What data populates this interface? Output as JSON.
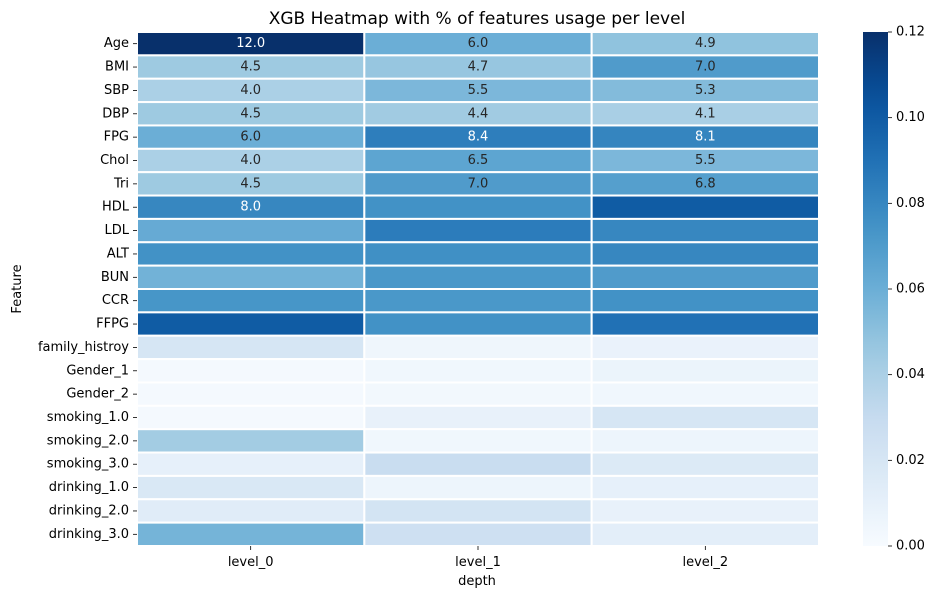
{
  "chart_data": {
    "type": "heatmap",
    "title": "XGB Heatmap with % of features usage per level",
    "xlabel": "depth",
    "ylabel": "Feature",
    "columns": [
      "level_0",
      "level_1",
      "level_2"
    ],
    "rows": [
      "Age",
      "BMI",
      "SBP",
      "DBP",
      "FPG",
      "Chol",
      "Tri",
      "HDL",
      "LDL",
      "ALT",
      "BUN",
      "CCR",
      "FFPG",
      "family_histroy",
      "Gender_1",
      "Gender_2",
      "smoking_1.0",
      "smoking_2.0",
      "smoking_3.0",
      "drinking_1.0",
      "drinking_2.0",
      "drinking_3.0"
    ],
    "values": [
      [
        0.12,
        0.06,
        0.049
      ],
      [
        0.045,
        0.047,
        0.07
      ],
      [
        0.04,
        0.055,
        0.053
      ],
      [
        0.045,
        0.044,
        0.041
      ],
      [
        0.06,
        0.084,
        0.081
      ],
      [
        0.04,
        0.065,
        0.055
      ],
      [
        0.045,
        0.07,
        0.068
      ],
      [
        0.08,
        0.075,
        0.1
      ],
      [
        0.062,
        0.085,
        0.08
      ],
      [
        0.075,
        0.076,
        0.08
      ],
      [
        0.058,
        0.072,
        0.07
      ],
      [
        0.073,
        0.072,
        0.075
      ],
      [
        0.1,
        0.075,
        0.09
      ],
      [
        0.02,
        0.005,
        0.008
      ],
      [
        0.002,
        0.004,
        0.007
      ],
      [
        0.002,
        0.003,
        0.004
      ],
      [
        0.002,
        0.009,
        0.02
      ],
      [
        0.043,
        0.004,
        0.006
      ],
      [
        0.01,
        0.028,
        0.016
      ],
      [
        0.018,
        0.006,
        0.01
      ],
      [
        0.014,
        0.022,
        0.009
      ],
      [
        0.057,
        0.025,
        0.012
      ]
    ],
    "annotations": [
      [
        "12.0",
        "6.0",
        "4.9"
      ],
      [
        "4.5",
        "4.7",
        "7.0"
      ],
      [
        "4.0",
        "5.5",
        "5.3"
      ],
      [
        "4.5",
        "4.4",
        "4.1"
      ],
      [
        "6.0",
        "8.4",
        "8.1"
      ],
      [
        "4.0",
        "6.5",
        "5.5"
      ],
      [
        "4.5",
        "7.0",
        "6.8"
      ],
      [
        "8.0",
        "",
        ""
      ],
      [
        "",
        "",
        ""
      ],
      [
        "",
        "",
        ""
      ],
      [
        "",
        "",
        ""
      ],
      [
        "",
        "",
        ""
      ],
      [
        "",
        "",
        ""
      ],
      [
        "",
        "",
        ""
      ],
      [
        "",
        "",
        ""
      ],
      [
        "",
        "",
        ""
      ],
      [
        "",
        "",
        ""
      ],
      [
        "",
        "",
        ""
      ],
      [
        "",
        "",
        ""
      ],
      [
        "",
        "",
        ""
      ],
      [
        "",
        "",
        ""
      ],
      [
        "",
        "",
        ""
      ]
    ],
    "colorscale": "Blues",
    "vmin": 0.0,
    "vmax": 0.12,
    "colorbar_ticks": [
      "0.00",
      "0.02",
      "0.04",
      "0.06",
      "0.08",
      "0.10",
      "0.12"
    ],
    "colorbar_tick_values": [
      0.0,
      0.02,
      0.04,
      0.06,
      0.08,
      0.1,
      0.12
    ]
  }
}
